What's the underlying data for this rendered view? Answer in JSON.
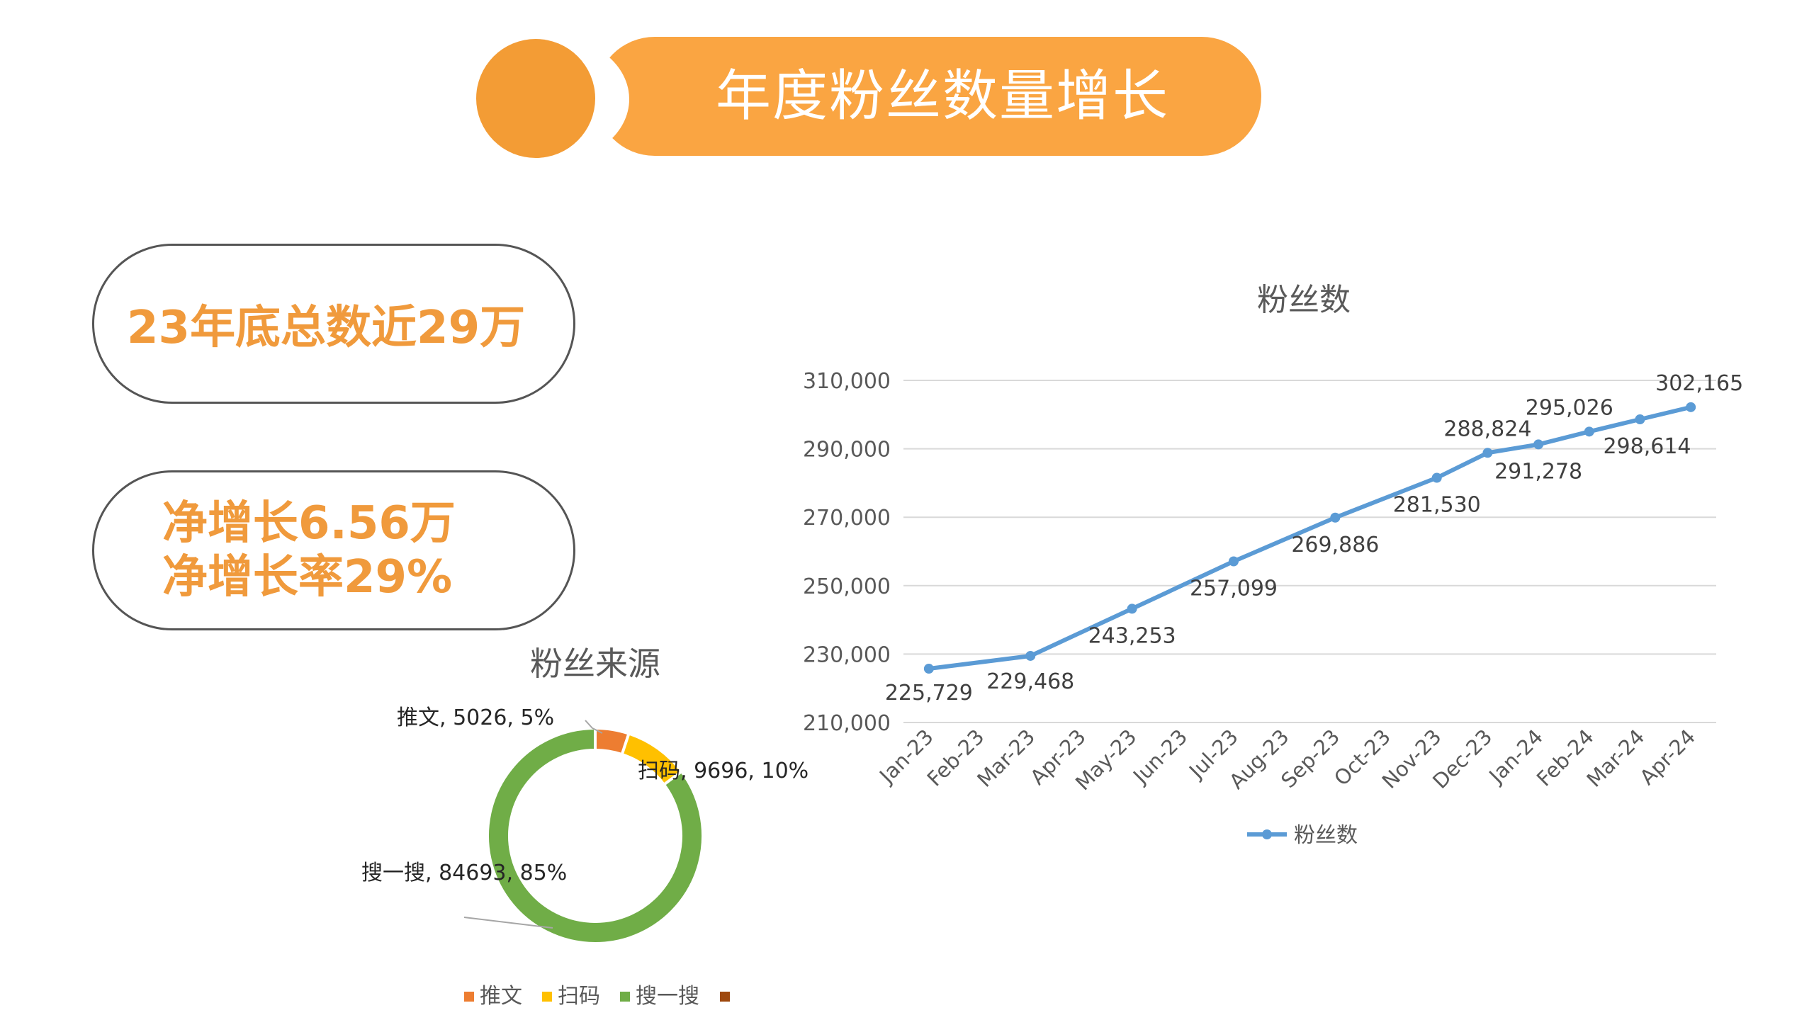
{
  "page_title": "年度粉丝数量增长",
  "highlights": {
    "total": "23年底总数近29万",
    "net_growth": "净增长6.56万",
    "net_growth_rate": "净增长率29%"
  },
  "colors": {
    "accent": "#faa542",
    "highlight_text": "#f09a3c",
    "line": "#5b9bd5",
    "pie_tuiwen": "#ed7d31",
    "pie_saoma": "#ffc000",
    "pie_sousou": "#70ad47",
    "pie_other": "#9e480e"
  },
  "chart_data": [
    {
      "type": "line",
      "title": "粉丝数",
      "categories": [
        "Jan-23",
        "Feb-23",
        "Mar-23",
        "Apr-23",
        "May-23",
        "Jun-23",
        "Jul-23",
        "Aug-23",
        "Sep-23",
        "Oct-23",
        "Nov-23",
        "Dec-23",
        "Jan-24",
        "Feb-24",
        "Mar-24",
        "Apr-24"
      ],
      "series": [
        {
          "name": "粉丝数",
          "values": [
            225729,
            null,
            229468,
            null,
            243253,
            null,
            257099,
            null,
            269886,
            null,
            281530,
            288824,
            291278,
            295026,
            298614,
            302165
          ],
          "labels": [
            "225,729",
            "",
            "229,468",
            "",
            "243,253",
            "",
            "257,099",
            "",
            "269,886",
            "",
            "281,530",
            "288,824",
            "291,278",
            "295,026",
            "298,614",
            "302,165"
          ]
        }
      ],
      "y_ticks": [
        "210,000",
        "230,000",
        "250,000",
        "270,000",
        "290,000",
        "310,000"
      ],
      "ylim": [
        210000,
        310000
      ],
      "grid": true,
      "legend": "bottom"
    },
    {
      "type": "pie",
      "title": "粉丝来源",
      "slices": [
        {
          "name": "推文",
          "value": 5026,
          "percent": "5%",
          "label": "推文, 5026, 5%"
        },
        {
          "name": "扫码",
          "value": 9696,
          "percent": "10%",
          "label": "扫码, 9696, 10%"
        },
        {
          "name": "搜一搜",
          "value": 84693,
          "percent": "85%",
          "label": "搜一搜, 84693, 85%"
        },
        {
          "name": "",
          "value": 0,
          "percent": "",
          "label": ""
        }
      ],
      "legend": "bottom"
    }
  ]
}
